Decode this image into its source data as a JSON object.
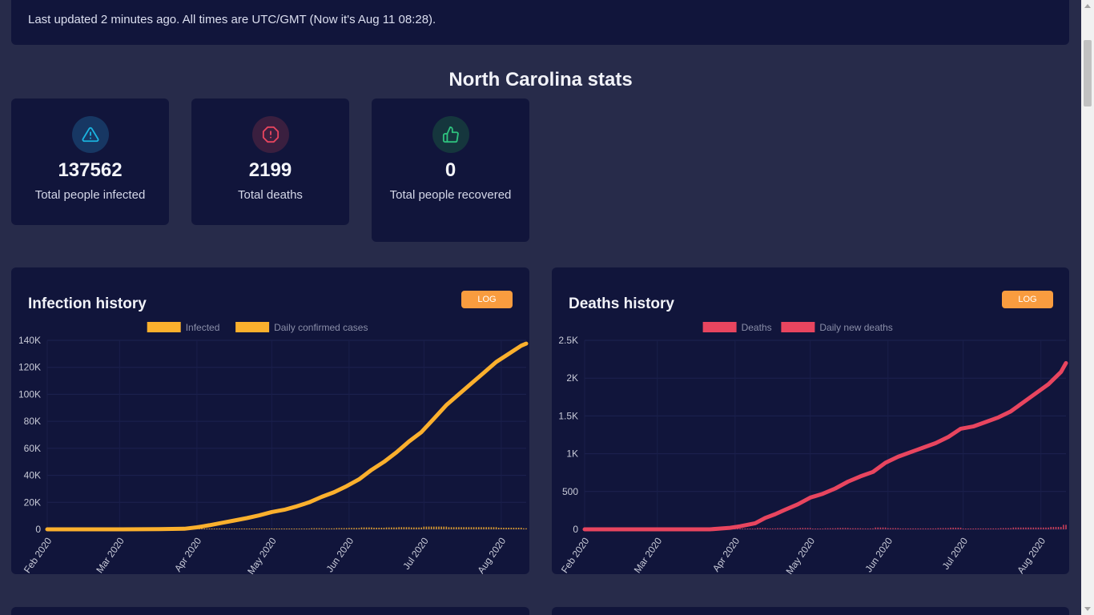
{
  "header": {
    "last_updated": "Last updated 2 minutes ago. All times are UTC/GMT (Now it's Aug 11 08:28)."
  },
  "page_title": "North Carolina stats",
  "stats": [
    {
      "value": "137562",
      "label": "Total people infected",
      "icon": "warning-triangle-icon",
      "color": "#1ab4e0",
      "bg": "#173763"
    },
    {
      "value": "2199",
      "label": "Total deaths",
      "icon": "alert-octagon-icon",
      "color": "#e8455f",
      "bg": "#3a1f3f"
    },
    {
      "value": "0",
      "label": "Total people recovered",
      "icon": "thumbs-up-icon",
      "color": "#2ec27e",
      "bg": "#15363d"
    }
  ],
  "log_label": "LOG",
  "chart_data": [
    {
      "type": "line",
      "title": "Infection history",
      "legend": [
        "Infected",
        "Daily confirmed cases"
      ],
      "legend_position": "top-center",
      "color": "#fbb02d",
      "x_ticks": [
        "Feb 2020",
        "Mar 2020",
        "Apr 2020",
        "May 2020",
        "Jun 2020",
        "Jul 2020",
        "Aug 2020"
      ],
      "y_ticks": [
        "0",
        "20K",
        "40K",
        "60K",
        "80K",
        "100K",
        "120K",
        "140K"
      ],
      "ylim": [
        0,
        140000
      ],
      "xlim_days": [
        0,
        192
      ],
      "tick_days": [
        0,
        29,
        60,
        90,
        121,
        151,
        182
      ],
      "series": [
        {
          "name": "Infected",
          "x_days": [
            0,
            30,
            45,
            55,
            60,
            65,
            70,
            75,
            80,
            85,
            90,
            95,
            100,
            105,
            110,
            115,
            120,
            125,
            130,
            135,
            140,
            145,
            150,
            155,
            160,
            165,
            170,
            175,
            180,
            185,
            190,
            192
          ],
          "values": [
            0,
            0,
            100,
            400,
            1500,
            3000,
            4800,
            6500,
            8300,
            10300,
            12800,
            14500,
            17000,
            20000,
            24000,
            27500,
            32000,
            37000,
            44000,
            50000,
            57000,
            65000,
            72000,
            82000,
            92000,
            100000,
            108000,
            116000,
            124000,
            130000,
            136000,
            137562
          ]
        },
        {
          "name": "Daily confirmed cases",
          "daily": true
        }
      ]
    },
    {
      "type": "line",
      "title": "Deaths history",
      "legend": [
        "Deaths",
        "Daily new deaths"
      ],
      "legend_position": "top-center",
      "color": "#e8455f",
      "x_ticks": [
        "Feb 2020",
        "Mar 2020",
        "Apr 2020",
        "May 2020",
        "Jun 2020",
        "Jul 2020",
        "Aug 2020"
      ],
      "y_ticks": [
        "0",
        "500",
        "1K",
        "1.5K",
        "2K",
        "2.5K"
      ],
      "ylim": [
        0,
        2500
      ],
      "xlim_days": [
        0,
        192
      ],
      "tick_days": [
        0,
        29,
        60,
        90,
        121,
        151,
        182
      ],
      "series": [
        {
          "name": "Deaths",
          "x_days": [
            0,
            50,
            58,
            62,
            68,
            72,
            76,
            80,
            85,
            90,
            95,
            100,
            105,
            110,
            115,
            120,
            125,
            130,
            135,
            140,
            145,
            150,
            155,
            160,
            165,
            170,
            175,
            180,
            185,
            190,
            192
          ],
          "values": [
            0,
            0,
            20,
            40,
            80,
            150,
            200,
            260,
            330,
            420,
            470,
            540,
            630,
            700,
            760,
            880,
            960,
            1020,
            1080,
            1140,
            1220,
            1330,
            1360,
            1420,
            1480,
            1560,
            1680,
            1800,
            1920,
            2080,
            2199
          ]
        },
        {
          "name": "Daily new deaths",
          "daily": true
        }
      ]
    }
  ]
}
